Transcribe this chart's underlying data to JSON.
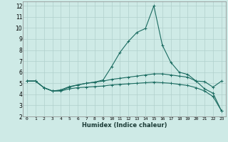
{
  "xlabel": "Humidex (Indice chaleur)",
  "background_color": "#ceeae6",
  "grid_color": "#b0d0cc",
  "line_color": "#1a6b60",
  "xlim": [
    -0.5,
    23.5
  ],
  "ylim": [
    2,
    12.4
  ],
  "xticks": [
    0,
    1,
    2,
    3,
    4,
    5,
    6,
    7,
    8,
    9,
    10,
    11,
    12,
    13,
    14,
    15,
    16,
    17,
    18,
    19,
    20,
    21,
    22,
    23
  ],
  "yticks": [
    2,
    3,
    4,
    5,
    6,
    7,
    8,
    9,
    10,
    11,
    12
  ],
  "line1_x": [
    0,
    1,
    2,
    3,
    4,
    5,
    6,
    7,
    8,
    9,
    10,
    11,
    12,
    13,
    14,
    15,
    16,
    17,
    18,
    19,
    20,
    21,
    22,
    23
  ],
  "line1_y": [
    5.2,
    5.2,
    4.6,
    4.3,
    4.4,
    4.7,
    4.85,
    5.0,
    5.1,
    5.2,
    5.35,
    5.45,
    5.55,
    5.65,
    5.75,
    5.85,
    5.85,
    5.75,
    5.65,
    5.55,
    5.2,
    5.15,
    4.65,
    5.2
  ],
  "line2_x": [
    0,
    1,
    2,
    3,
    4,
    5,
    6,
    7,
    8,
    9,
    10,
    11,
    12,
    13,
    14,
    15,
    16,
    17,
    18,
    19,
    20,
    21,
    22,
    23
  ],
  "line2_y": [
    5.2,
    5.2,
    4.6,
    4.3,
    4.35,
    4.65,
    4.85,
    5.0,
    5.1,
    5.3,
    6.5,
    7.8,
    8.8,
    9.6,
    9.95,
    12.0,
    8.45,
    6.9,
    6.0,
    5.8,
    5.2,
    4.5,
    4.1,
    2.5
  ],
  "line3_x": [
    0,
    1,
    2,
    3,
    4,
    5,
    6,
    7,
    8,
    9,
    10,
    11,
    12,
    13,
    14,
    15,
    16,
    17,
    18,
    19,
    20,
    21,
    22,
    23
  ],
  "line3_y": [
    5.2,
    5.2,
    4.6,
    4.3,
    4.3,
    4.5,
    4.6,
    4.65,
    4.7,
    4.75,
    4.85,
    4.9,
    4.95,
    5.0,
    5.05,
    5.1,
    5.05,
    5.0,
    4.9,
    4.8,
    4.6,
    4.3,
    3.8,
    2.5
  ]
}
